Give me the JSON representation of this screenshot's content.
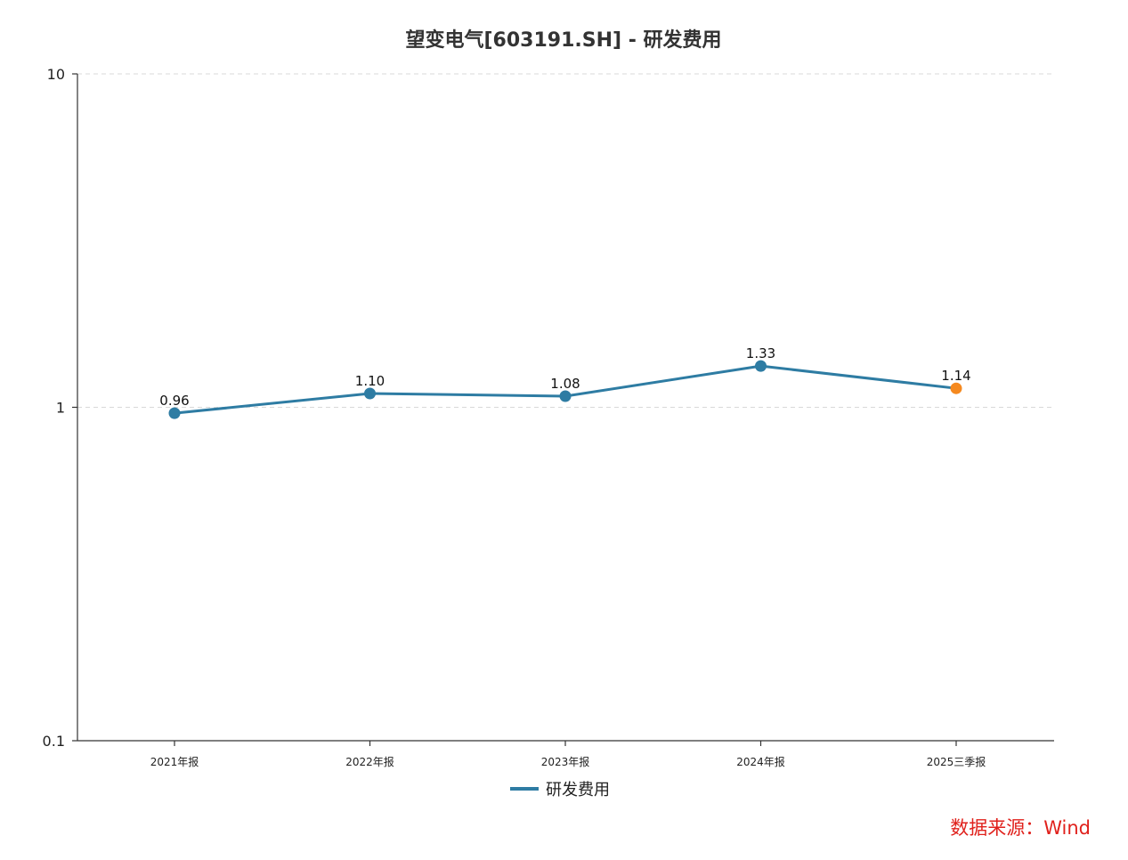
{
  "chart_data": {
    "type": "line",
    "title": "望变电气[603191.SH] - 研发费用",
    "xlabel": "",
    "ylabel": "",
    "y_scale": "log",
    "ylim": [
      0.1,
      10
    ],
    "y_ticks": [
      {
        "value": 10,
        "label": "10"
      },
      {
        "value": 1,
        "label": "1"
      },
      {
        "value": 0.1,
        "label": "0.1"
      }
    ],
    "grid": "horizontal dashed",
    "categories": [
      "2021年报",
      "2022年报",
      "2023年报",
      "2024年报",
      "2025三季报"
    ],
    "series": [
      {
        "name": "研发费用",
        "values": [
          0.96,
          1.1,
          1.08,
          1.33,
          1.14
        ],
        "labels": [
          "0.96",
          "1.10",
          "1.08",
          "1.33",
          "1.14"
        ],
        "color": "#2e7ca3",
        "last_point_color": "#f5891f"
      }
    ],
    "legend_position": "bottom-center"
  },
  "source_note": "数据来源：Wind"
}
